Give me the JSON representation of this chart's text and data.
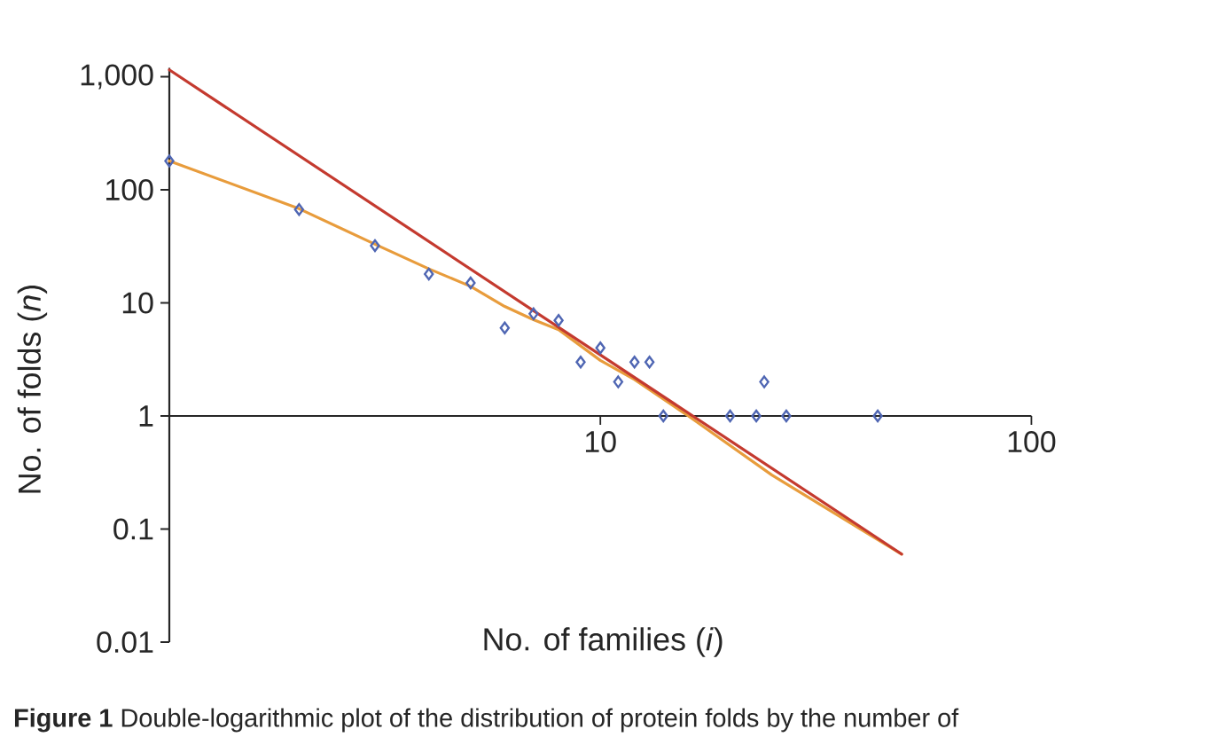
{
  "chart_data": {
    "type": "scatter",
    "xlabel": "No. of families (*i*)",
    "ylabel": "No. of folds (*n*)",
    "log": "xy",
    "xlim": [
      1,
      100
    ],
    "ylim": [
      0.01,
      1200
    ],
    "xticks": [
      10,
      100
    ],
    "yticks": [
      0.01,
      0.1,
      1,
      10,
      100,
      {
        "value": 1000,
        "label": "1,000"
      }
    ],
    "series": [
      {
        "type": "line",
        "color": "#e89c3c",
        "marker": "none",
        "line_style": "solid",
        "x": [
          1,
          2,
          3,
          4,
          5,
          6,
          7,
          8,
          10,
          12,
          16,
          25,
          50
        ],
        "values": [
          180,
          68,
          33,
          20,
          14,
          9.3,
          7.1,
          5.8,
          3.1,
          2.1,
          1.0,
          0.3,
          0.06
        ]
      },
      {
        "type": "line",
        "color": "#c43a2f",
        "marker": "none",
        "line_style": "solid",
        "x": [
          1,
          50
        ],
        "values": [
          1150,
          0.06
        ]
      },
      {
        "color": "#4f66b3",
        "marker": "diamond",
        "x": [
          1,
          2,
          3,
          4,
          5,
          6,
          7,
          8,
          9,
          10,
          11,
          12,
          13,
          14,
          20,
          23,
          24,
          27,
          44
        ],
        "values": [
          180,
          67,
          32,
          18,
          15,
          6,
          8,
          7,
          3,
          4,
          2,
          3,
          3,
          1,
          1,
          1,
          2,
          1,
          1
        ]
      }
    ],
    "annotations": [
      "**Figure 1** Double-logarithmic plot of the distribution of protein folds by the number of"
    ]
  }
}
